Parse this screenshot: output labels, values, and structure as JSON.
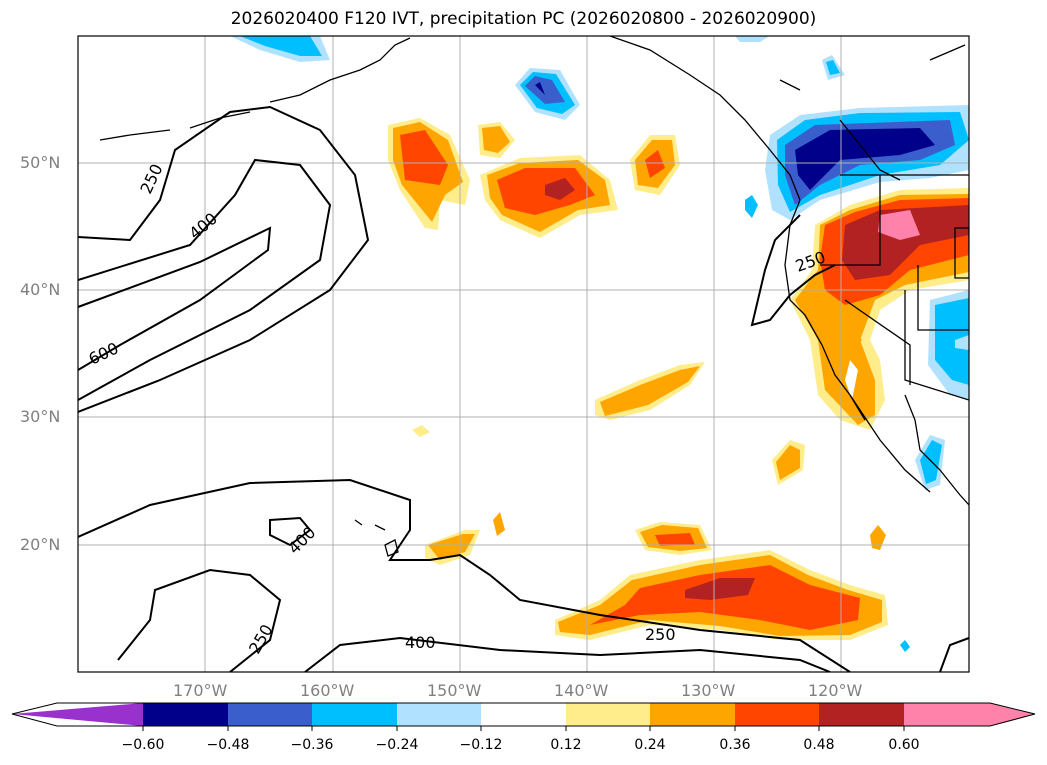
{
  "title": "2026020400 F120 IVT, precipitation PC (2026020800 - 2026020900)",
  "lat_ticks": [
    "50°N",
    "40°N",
    "30°N",
    "20°N"
  ],
  "lon_ticks": [
    "170°W",
    "160°W",
    "150°W",
    "140°W",
    "130°W",
    "120°W"
  ],
  "extent": {
    "lon": [
      -180,
      -110
    ],
    "lat": [
      10,
      60
    ]
  },
  "ivt_contour_labels": [
    "250",
    "400",
    "600",
    "400",
    "250",
    "400",
    "250",
    "250"
  ],
  "colorbar": {
    "ticks": [
      "−0.60",
      "−0.48",
      "−0.36",
      "−0.24",
      "−0.12",
      "0.12",
      "0.24",
      "0.36",
      "0.48",
      "0.60"
    ],
    "colors": [
      "#9932cc",
      "#00008b",
      "#3a5fcd",
      "#00bfff",
      "#b0e2ff",
      "#ffffff",
      "#ffec8b",
      "#ffa500",
      "#ff4500",
      "#b22222",
      "#ff82ab"
    ]
  }
}
